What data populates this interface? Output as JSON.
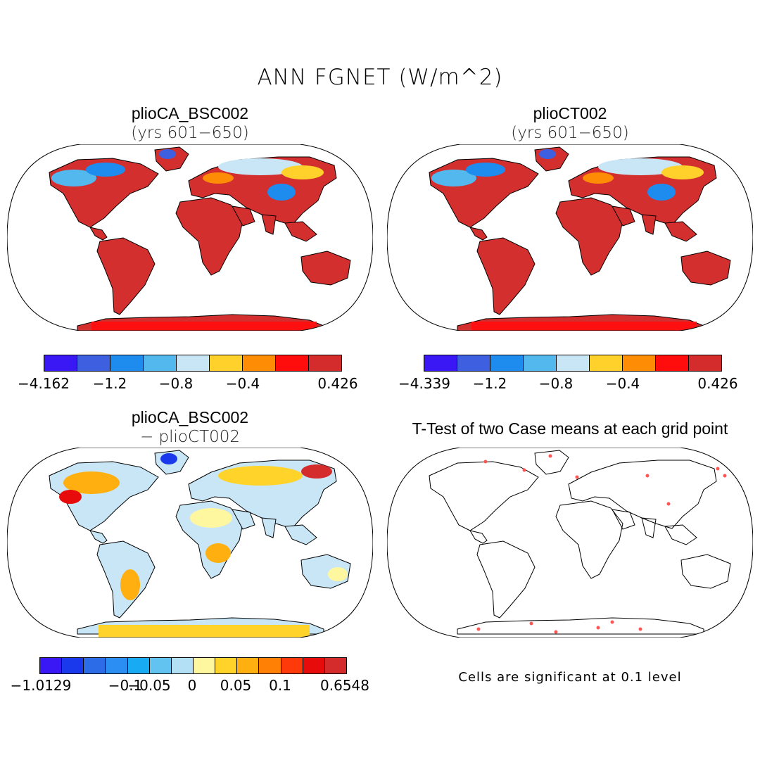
{
  "title": "ANN FGNET (W/m^2)",
  "colors": {
    "ocean": "#ffffff",
    "coast": "#000000",
    "land_red": "#d32f2f",
    "sig_dot": "#ff5555"
  },
  "panels": [
    {
      "title": "plioCA_BSC002",
      "subtitle": "(yrs 601−650)",
      "type": "field",
      "colorbar": {
        "colors": [
          "#3a18f5",
          "#3d5fe0",
          "#1e8bef",
          "#52b8ee",
          "#c8e6f6",
          "#ffd12a",
          "#ff8c05",
          "#ff0d0d",
          "#d42c2c"
        ],
        "labels": [
          "−4.162",
          "−1.2",
          "−0.8",
          "−0.4",
          "0.426"
        ]
      }
    },
    {
      "title": "plioCT002",
      "subtitle": "(yrs 601−650)",
      "type": "field",
      "colorbar": {
        "colors": [
          "#3a18f5",
          "#3d5fe0",
          "#1e8bef",
          "#52b8ee",
          "#c8e6f6",
          "#ffd12a",
          "#ff8c05",
          "#ff0d0d",
          "#d42c2c"
        ],
        "labels": [
          "−4.339",
          "−1.2",
          "−0.8",
          "−0.4",
          "0.426"
        ]
      }
    },
    {
      "title": "plioCA_BSC002",
      "subtitle": "− plioCT002",
      "type": "diff",
      "colorbar": {
        "colors": [
          "#3a18f5",
          "#1a38ec",
          "#2c6ce6",
          "#2a8ef2",
          "#18aaf3",
          "#62c2f0",
          "#b4e0f6",
          "#fff7a0",
          "#ffd32a",
          "#ffb010",
          "#ff8005",
          "#ff3a0a",
          "#e80b0b",
          "#d42c2c"
        ],
        "labels": [
          "−1.0129",
          "−0.1",
          "−0.05",
          "0",
          "0.05",
          "0.1",
          "0.6548"
        ]
      }
    },
    {
      "title": "T-Test of two Case means at each grid point",
      "type": "ttest",
      "note": "Cells are significant at 0.1 level"
    }
  ]
}
